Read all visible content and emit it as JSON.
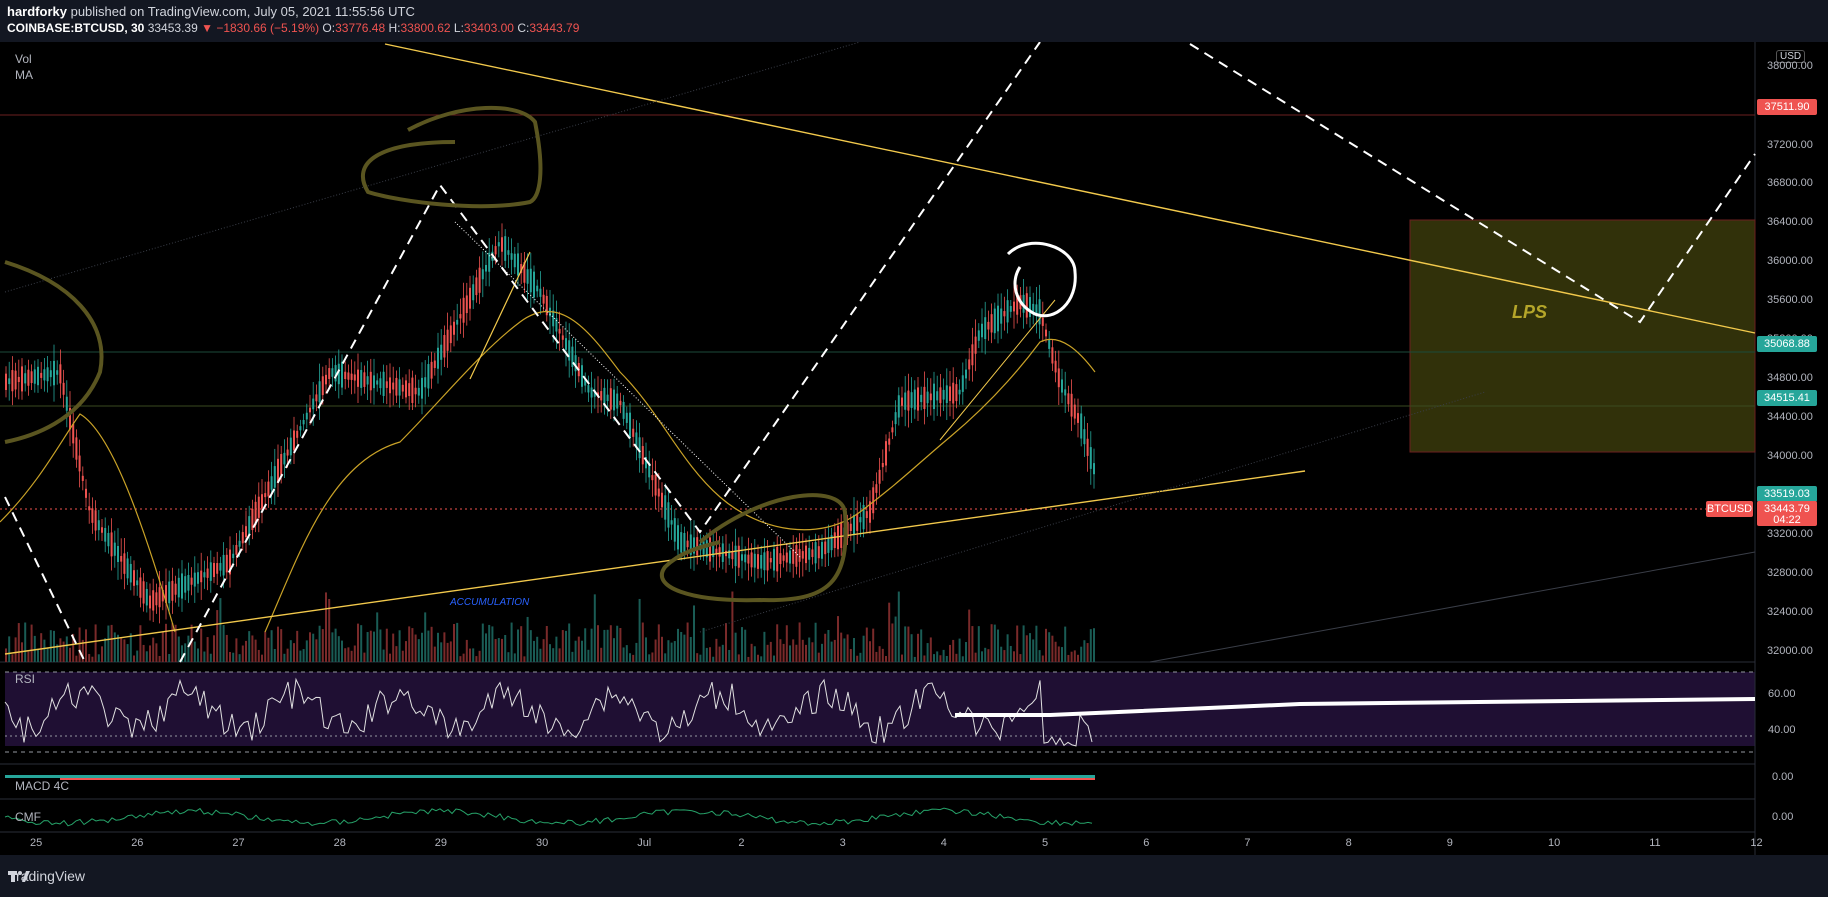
{
  "header": {
    "author": "hardforky",
    "published_text": "published on TradingView.com, July 05, 2021 11:55:56 UTC",
    "symbol": "COINBASE:BTCUSD, 30",
    "price": "33453.39",
    "change": "▼ −1830.66 (−5.19%)",
    "ohlc": {
      "o_label": "O:",
      "o": "33776.48",
      "h_label": "H:",
      "h": "33800.62",
      "l_label": "L:",
      "l": "33403.00",
      "c_label": "C:",
      "c": "33443.79"
    }
  },
  "panes": {
    "vol": "Vol",
    "ma": "MA",
    "rsi": "RSI",
    "macd": "MACD 4C",
    "cmf": "CMF"
  },
  "annotations": {
    "accumulation": "ACCUMULATION",
    "lps": "LPS"
  },
  "price_axis": {
    "currency": "USD",
    "ticks": [
      "38000.00",
      "37600.00",
      "37200.00",
      "36800.00",
      "36400.00",
      "36000.00",
      "35600.00",
      "35200.00",
      "34800.00",
      "34400.00",
      "34000.00",
      "33600.00",
      "33200.00",
      "32800.00",
      "32400.00",
      "32000.00"
    ],
    "tags": [
      {
        "text": "37511.90",
        "color": "#ef5350"
      },
      {
        "text": "35068.88",
        "color": "#26a69a"
      },
      {
        "text": "34515.41",
        "color": "#26a69a"
      },
      {
        "text": "33519.03",
        "color": "#26a69a"
      },
      {
        "text": "33443.79",
        "color": "#ef5350"
      },
      {
        "text": "04:22",
        "color": "#ef5350"
      }
    ],
    "symbol_tag": "BTCUSD",
    "rsi_ticks": [
      "60.00",
      "40.00"
    ],
    "macd_tick": "0.00",
    "cmf_tick": "0.00"
  },
  "time_axis": [
    "25",
    "26",
    "27",
    "28",
    "29",
    "30",
    "Jul",
    "2",
    "3",
    "4",
    "5",
    "6",
    "7",
    "8",
    "9",
    "10",
    "11",
    "12"
  ],
  "footer": {
    "brand": "TradingView"
  },
  "colors": {
    "bg": "#000000",
    "up": "#26a69a",
    "down": "#ef5350",
    "trend": "#f2c94c",
    "box": "#4a4a10"
  }
}
